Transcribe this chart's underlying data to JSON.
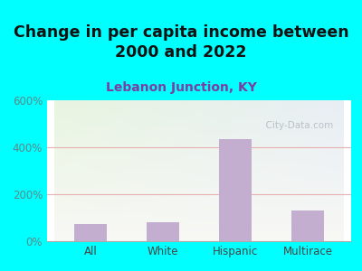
{
  "title": "Change in per capita income between\n2000 and 2022",
  "subtitle": "Lebanon Junction, KY",
  "categories": [
    "All",
    "White",
    "Hispanic",
    "Multirace"
  ],
  "values": [
    75,
    80,
    435,
    130
  ],
  "bar_color": "#c4aed0",
  "title_fontsize": 12.5,
  "subtitle_fontsize": 10,
  "subtitle_color": "#7b3fa0",
  "background_outer": "#00ffff",
  "plot_bg_color_topleft": "#e8f5e0",
  "plot_bg_color_topright": "#e8eef5",
  "plot_bg_color_bottom": "#f5f5f0",
  "ylim": [
    0,
    600
  ],
  "yticks": [
    0,
    200,
    400,
    600
  ],
  "ytick_labels": [
    "0%",
    "200%",
    "400%",
    "600%"
  ],
  "grid_color": "#e8b0b0",
  "watermark": "  City-Data.com",
  "watermark_color": "#b0b8c0",
  "tick_label_color": "#5a8a8a",
  "xlabel_color": "#444444"
}
